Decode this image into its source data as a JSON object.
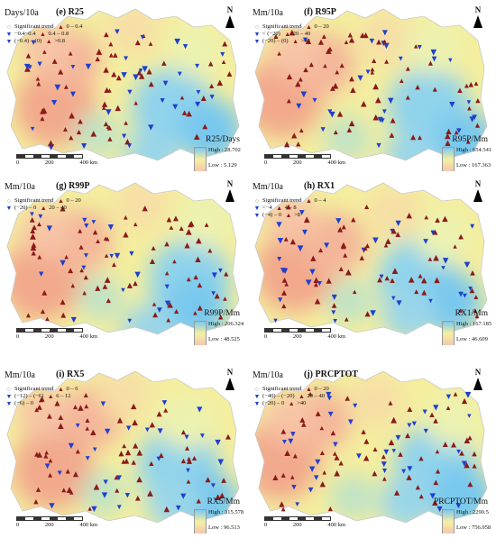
{
  "colors": {
    "up": "#8b1a1a",
    "down": "#1f3fcf",
    "high_fill": "#7ec8f0",
    "low_fill": "#f3c7b0"
  },
  "scale": {
    "labels": [
      "0",
      "200",
      "400 km"
    ]
  },
  "north_label": "N",
  "panels": [
    {
      "title": "(e) R25",
      "units": "Days/10a",
      "legend": [
        [
          "Significant trend",
          "0 – 0.4"
        ],
        [
          "−0.4~0.4",
          "0.4 – 0.8"
        ],
        [
          "(−0.4) – (0)",
          ">0.8"
        ]
      ],
      "cbar_title": "R25/Days",
      "high": "High : 28.702",
      "low": "Low : 5.129"
    },
    {
      "title": "(f) R95P",
      "units": "Mm/10a",
      "legend": [
        [
          "Significant trend",
          "0 – 20"
        ],
        [
          "< (−20)",
          "20 – 40"
        ],
        [
          "(−20) – (0)",
          ">40"
        ]
      ],
      "cbar_title": "R95P/Mm",
      "high": "High : 654.541",
      "low": "Low : 167.363"
    },
    {
      "title": "(g) R99P",
      "units": "Mm/10a",
      "legend": [
        [
          "Significant trend",
          "0 – 20"
        ],
        [
          "(−20) – 0",
          "20 – 40"
        ],
        [
          "",
          ""
        ]
      ],
      "cbar_title": "R99P/Mm",
      "high": "High : 206.324",
      "low": "Low : 48.525"
    },
    {
      "title": "(h) RX1",
      "units": "Mm/10a",
      "legend": [
        [
          "Significant trend",
          "0 – 4"
        ],
        [
          "<−4",
          "4 – 8"
        ],
        [
          "(−4) – 0",
          ">8"
        ]
      ],
      "cbar_title": "RX1/Mm",
      "high": "High : 167.185",
      "low": "Low : 46.609"
    },
    {
      "title": "(i) RX5",
      "units": "Mm/10a",
      "legend": [
        [
          "Significant trend",
          "0 – 6"
        ],
        [
          "(−12) – (−6)",
          "6 – 12"
        ],
        [
          "(−6) – 0",
          ""
        ]
      ],
      "cbar_title": "RX5/Mm",
      "high": "High : 315.578",
      "low": "Low : 96.513"
    },
    {
      "title": "(j) PRCPTOT",
      "units": "Mm/10a",
      "legend": [
        [
          "Significant trend",
          "0 – 20"
        ],
        [
          "(−40) – (−20)",
          "20 – 40"
        ],
        [
          "(−20) – 0",
          ">40"
        ]
      ],
      "cbar_title": "PRCPTOT/Mm",
      "high": "High : 2290.5",
      "low": "Low : 756.958"
    }
  ]
}
